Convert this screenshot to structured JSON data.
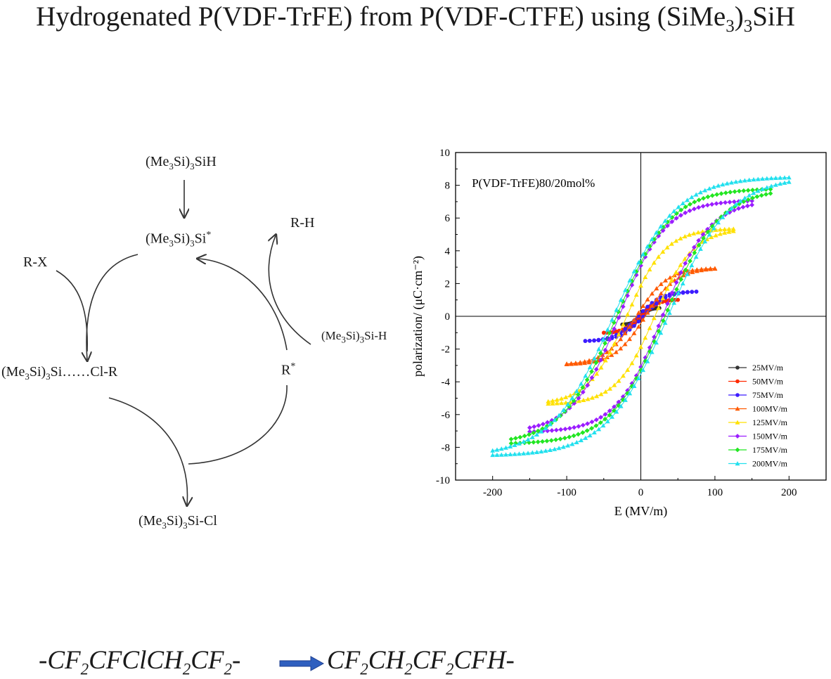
{
  "title": {
    "main": "Hydrogenated P(VDF-TrFE) from P(VDF-CTFE) using (SiMe",
    "sub1": "3",
    "mid": ")",
    "sub2": "3",
    "end": "SiH"
  },
  "scheme": {
    "reagent_top": {
      "a": "(Me",
      "s1": "3",
      "b": "Si)",
      "s2": "3",
      "c": "SiH"
    },
    "radical": {
      "a": "(Me",
      "s1": "3",
      "b": "Si)",
      "s2": "3",
      "c": "Si",
      "sup": "*"
    },
    "rx": "R-X",
    "rh": "R-H",
    "silane_h": {
      "a": "(Me",
      "s1": "3",
      "b": "Si)",
      "s2": "3",
      "c": "Si-H"
    },
    "complex": {
      "a": "(Me",
      "s1": "3",
      "b": "Si)",
      "s2": "3",
      "c": "Si……Cl-R"
    },
    "r_radical": {
      "a": "R",
      "sup": "*"
    },
    "product_cl": {
      "a": "(Me",
      "s1": "3",
      "b": "Si)",
      "s2": "3",
      "c": "Si-Cl"
    }
  },
  "chart_data": {
    "type": "line",
    "annotation": "P(VDF-TrFE)80/20mol%",
    "xlabel": "E (MV/m)",
    "ylabel": "polarization/ (μC·cm⁻²)",
    "xlim": [
      -250,
      250
    ],
    "ylim": [
      -10,
      10
    ],
    "xticks": [
      "-200",
      "-100",
      "0",
      "100",
      "200"
    ],
    "yticks": [
      "-10",
      "-8",
      "-6",
      "-4",
      "-2",
      "0",
      "2",
      "4",
      "6",
      "8",
      "10"
    ],
    "legend_position": "bottom-right",
    "series": [
      {
        "name": "25MV/m",
        "color": "#333333",
        "marker": "circle",
        "Emax": 25,
        "Pmax": 0.5,
        "Pr": 0.05
      },
      {
        "name": "50MV/m",
        "color": "#ff2a00",
        "marker": "circle",
        "Emax": 50,
        "Pmax": 1.0,
        "Pr": 0.1
      },
      {
        "name": "75MV/m",
        "color": "#3c1cff",
        "marker": "circle",
        "Emax": 75,
        "Pmax": 1.5,
        "Pr": 0.15
      },
      {
        "name": "100MV/m",
        "color": "#ff5a00",
        "marker": "triangle",
        "Emax": 100,
        "Pmax": 2.9,
        "Pr": 0.4
      },
      {
        "name": "125MV/m",
        "color": "#ffe100",
        "marker": "triangle",
        "Emax": 125,
        "Pmax": 5.2,
        "Pr": 2.2
      },
      {
        "name": "150MV/m",
        "color": "#9b1dff",
        "marker": "diamond",
        "Emax": 150,
        "Pmax": 6.8,
        "Pr": 3.8
      },
      {
        "name": "175MV/m",
        "color": "#22e622",
        "marker": "diamond",
        "Emax": 175,
        "Pmax": 7.5,
        "Pr": 4.0
      },
      {
        "name": "200MV/m",
        "color": "#22e0ee",
        "marker": "triangle",
        "Emax": 200,
        "Pmax": 8.2,
        "Pr": 4.3
      }
    ]
  },
  "equation": {
    "left": {
      "p1": "-CF",
      "s1": "2",
      "p2": "CFClCH",
      "s2": "2",
      "p3": "CF",
      "s3": "2",
      "p4": "-"
    },
    "right": {
      "p1": "CF",
      "s1": "2",
      "p2": "CH",
      "s2": "2",
      "p3": "CF",
      "s3": "2",
      "p4": "CFH-"
    }
  }
}
